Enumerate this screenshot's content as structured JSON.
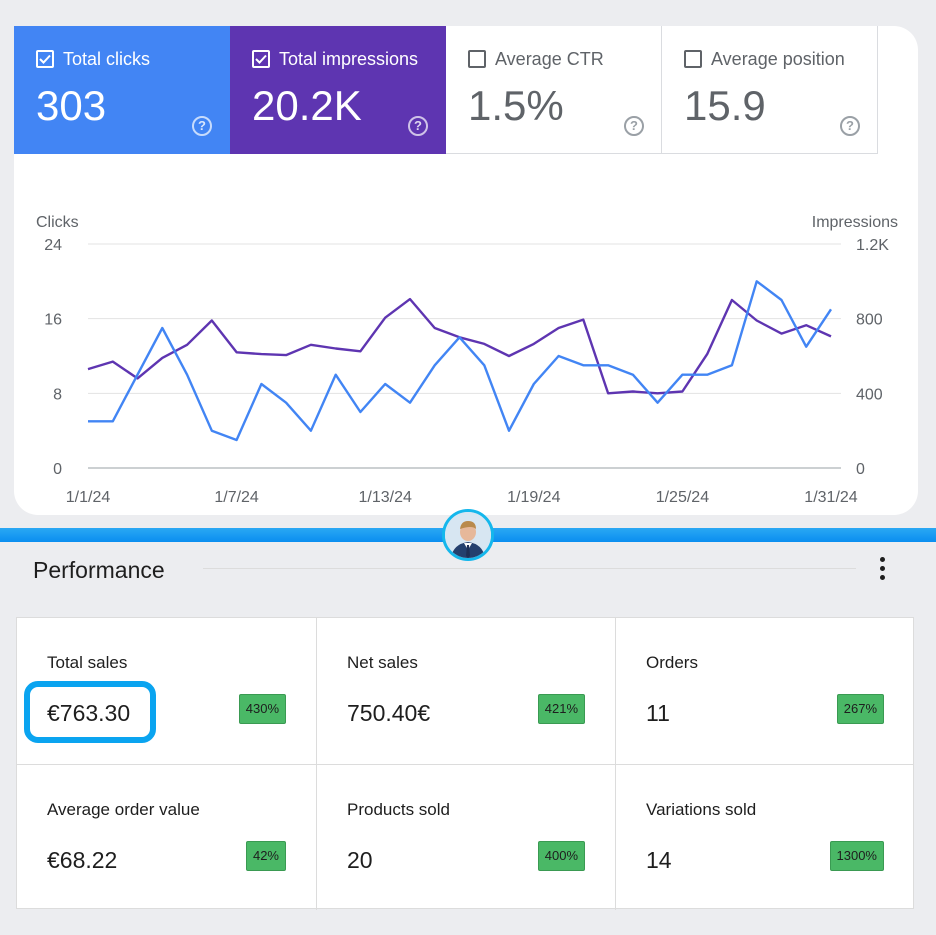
{
  "metrics": [
    {
      "label": "Total clicks",
      "value": "303",
      "checked": true,
      "color": "#4285f4"
    },
    {
      "label": "Total impressions",
      "value": "20.2K",
      "checked": true,
      "color": "#5e35b1"
    },
    {
      "label": "Average CTR",
      "value": "1.5%",
      "checked": false
    },
    {
      "label": "Average position",
      "value": "15.9",
      "checked": false
    }
  ],
  "chart_data": {
    "type": "line",
    "left_axis_label": "Clicks",
    "right_axis_label": "Impressions",
    "left_ticks": [
      "24",
      "16",
      "8",
      "0"
    ],
    "right_ticks": [
      "1.2K",
      "800",
      "400",
      "0"
    ],
    "x_tick_labels": [
      "1/1/24",
      "1/7/24",
      "1/13/24",
      "1/19/24",
      "1/25/24",
      "1/31/24"
    ],
    "ylim_left": [
      0,
      24
    ],
    "ylim_right": [
      0,
      1200
    ],
    "grid": true,
    "x": [
      "1/1/24",
      "1/2/24",
      "1/3/24",
      "1/4/24",
      "1/5/24",
      "1/6/24",
      "1/7/24",
      "1/8/24",
      "1/9/24",
      "1/10/24",
      "1/11/24",
      "1/12/24",
      "1/13/24",
      "1/14/24",
      "1/15/24",
      "1/16/24",
      "1/17/24",
      "1/18/24",
      "1/19/24",
      "1/20/24",
      "1/21/24",
      "1/22/24",
      "1/23/24",
      "1/24/24",
      "1/25/24",
      "1/26/24",
      "1/27/24",
      "1/28/24",
      "1/29/24",
      "1/30/24",
      "1/31/24"
    ],
    "series": [
      {
        "name": "Clicks",
        "axis": "left",
        "color": "#4285f4",
        "values": [
          5,
          5,
          10,
          15,
          10,
          4,
          3,
          9,
          7,
          4,
          10,
          6,
          9,
          7,
          11,
          14,
          11,
          4,
          9,
          12,
          11,
          11,
          10,
          7,
          10,
          10,
          11,
          20,
          18,
          13,
          17
        ]
      },
      {
        "name": "Impressions",
        "axis": "right",
        "color": "#5e35b1",
        "values": [
          530,
          570,
          480,
          590,
          660,
          790,
          620,
          610,
          605,
          660,
          640,
          625,
          805,
          905,
          750,
          700,
          665,
          600,
          665,
          750,
          795,
          400,
          410,
          400,
          410,
          610,
          900,
          790,
          720,
          765,
          705
        ]
      }
    ]
  },
  "performance": {
    "title": "Performance",
    "cells": [
      {
        "label": "Total sales",
        "value": "€763.30",
        "change": "430%"
      },
      {
        "label": "Net sales",
        "value": "750.40€",
        "change": "421%"
      },
      {
        "label": "Orders",
        "value": "11",
        "change": "267%"
      },
      {
        "label": "Average order value",
        "value": "€68.22",
        "change": "42%"
      },
      {
        "label": "Products sold",
        "value": "20",
        "change": "400%"
      },
      {
        "label": "Variations sold",
        "value": "14",
        "change": "1300%"
      }
    ]
  }
}
